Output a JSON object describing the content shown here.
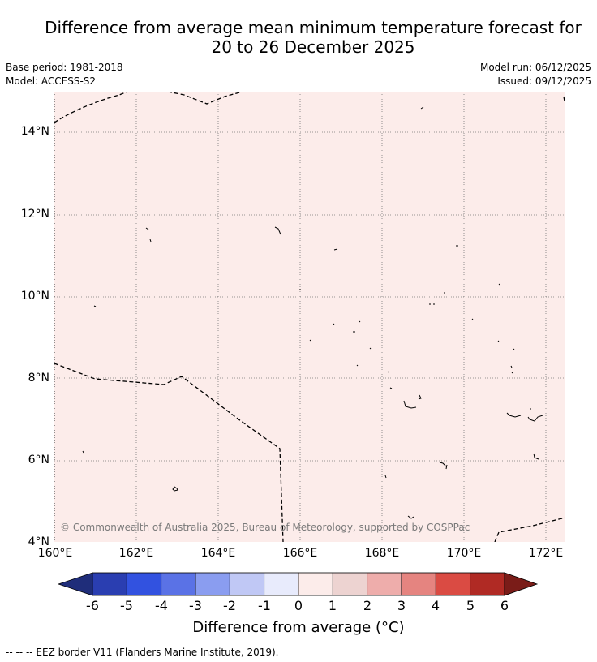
{
  "title_line1": "Difference from average mean minimum temperature forecast for",
  "title_line2": "20 to 26 December 2025",
  "meta_left": {
    "base_period": "Base period: 1981-2018",
    "model": "Model: ACCESS-S2"
  },
  "meta_right": {
    "model_run": "Model run: 06/12/2025",
    "issued": "Issued: 09/12/2025"
  },
  "copyright": "© Commonwealth of Australia 2025, Bureau of Meteorology, supported by COSPPac",
  "lat_labels": [
    "14°N",
    "12°N",
    "10°N",
    "8°N",
    "6°N",
    "4°N"
  ],
  "lon_labels": [
    "160°E",
    "162°E",
    "164°E",
    "166°E",
    "168°E",
    "170°E",
    "172°E"
  ],
  "map_fill_color": "#fcecea",
  "colorbar": {
    "label": "Difference from average (°C)",
    "ticks": [
      "-6",
      "-5",
      "-4",
      "-3",
      "-2",
      "-1",
      "0",
      "1",
      "2",
      "3",
      "4",
      "5",
      "6"
    ],
    "colors": [
      "#1f2d7a",
      "#2a3eb1",
      "#3252e0",
      "#5a72e6",
      "#8a9df0",
      "#c0c8f5",
      "#e8ebfc",
      "#fcecea",
      "#edd3d1",
      "#eeadab",
      "#e58480",
      "#da4b43",
      "#b02a24",
      "#7a1c18"
    ]
  },
  "legend_text": "--  --  -- EEZ border V11 (Flanders Marine Institute, 2019)."
}
